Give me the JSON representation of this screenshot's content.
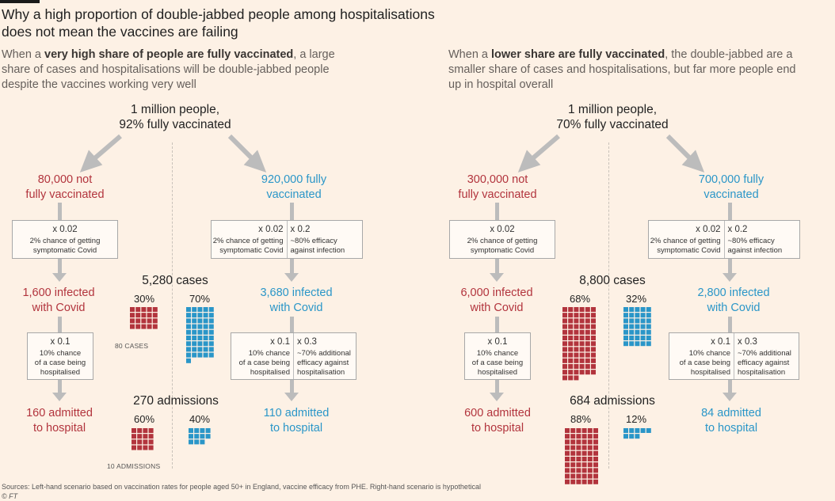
{
  "title_line1": "Why a high proportion of double-jabbed people among hospitalisations",
  "title_line2": "does not mean the vaccines are failing",
  "colors": {
    "red": "#b2343d",
    "blue": "#2a96c8",
    "arrow": "#bcbcbc",
    "background": "#fdf1e5"
  },
  "left": {
    "sub_pre": "When a ",
    "sub_bold": "very high share of people are fully vaccinated",
    "sub_post": ", a large share of cases and hospitalisations will be double-jabbed people despite the vaccines working very well",
    "pop_line1": "1 million people,",
    "pop_line2": "92% fully vaccinated",
    "unvax": {
      "group_line1": "80,000 not",
      "group_line2": "fully vaccinated",
      "box1_mult": "x 0.02",
      "box1_text1": "2% chance of getting",
      "box1_text2": "symptomatic Covid",
      "infected_line1": "1,600 infected",
      "infected_line2": "with Covid",
      "box2_mult": "x 0.1",
      "box2_text1": "10% chance",
      "box2_text2": "of a case being",
      "box2_text3": "hospitalised",
      "admitted_line1": "160 admitted",
      "admitted_line2": "to hospital"
    },
    "vax": {
      "group_line1": "920,000 fully",
      "group_line2": "vaccinated",
      "box1_mult_a": "x 0.02",
      "box1_a1": "2% chance of getting",
      "box1_a2": "symptomatic Covid",
      "box1_mult_b": "x 0.2",
      "box1_b1": "~80% efficacy",
      "box1_b2": "against infection",
      "infected_line1": "3,680 infected",
      "infected_line2": "with Covid",
      "box2_mult_a": "x 0.1",
      "box2_a1": "10% chance",
      "box2_a2": "of a case being",
      "box2_a3": "hospitalised",
      "box2_mult_b": "x 0.3",
      "box2_b1": "~70% additional",
      "box2_b2": "efficacy against",
      "box2_b3": "hospitalisation",
      "admitted_line1": "110 admitted",
      "admitted_line2": "to hospital"
    },
    "cases_label": "5,280 cases",
    "cases_unvax_pct": "30%",
    "cases_vax_pct": "70%",
    "cases_unvax_share": 30,
    "cases_vax_share": 70,
    "cases_scale_note": "80 CASES",
    "adm_label": "270 admissions",
    "adm_unvax_pct": "60%",
    "adm_vax_pct": "40%",
    "adm_unvax_share": 60,
    "adm_vax_share": 40,
    "adm_scale_note": "10 ADMISSIONS"
  },
  "right": {
    "sub_pre": "When a ",
    "sub_bold": "lower share are fully vaccinated",
    "sub_post": ", the double-jabbed are a smaller share of cases and hospitalisations, but far more people end up in hospital overall",
    "pop_line1": "1 million people,",
    "pop_line2": "70% fully vaccinated",
    "unvax": {
      "group_line1": "300,000 not",
      "group_line2": "fully vaccinated",
      "box1_mult": "x 0.02",
      "box1_text1": "2% chance of getting",
      "box1_text2": "symptomatic Covid",
      "infected_line1": "6,000 infected",
      "infected_line2": "with Covid",
      "box2_mult": "x 0.1",
      "box2_text1": "10% chance",
      "box2_text2": "of a case being",
      "box2_text3": "hospitalised",
      "admitted_line1": "600 admitted",
      "admitted_line2": "to hospital"
    },
    "vax": {
      "group_line1": "700,000 fully",
      "group_line2": "vaccinated",
      "box1_mult_a": "x 0.02",
      "box1_a1": "2% chance of getting",
      "box1_a2": "symptomatic Covid",
      "box1_mult_b": "x 0.2",
      "box1_b1": "~80% efficacy",
      "box1_b2": "against infection",
      "infected_line1": "2,800 infected",
      "infected_line2": "with Covid",
      "box2_mult_a": "x 0.1",
      "box2_a1": "10% chance",
      "box2_a2": "of a case being",
      "box2_a3": "hospitalised",
      "box2_mult_b": "x 0.3",
      "box2_b1": "~70% additional",
      "box2_b2": "efficacy against",
      "box2_b3": "hospitalisation",
      "admitted_line1": "84 admitted",
      "admitted_line2": "to hospital"
    },
    "cases_label": "8,800 cases",
    "cases_unvax_pct": "68%",
    "cases_vax_pct": "32%",
    "cases_unvax_share": 68,
    "cases_vax_share": 32,
    "adm_label": "684 admissions",
    "adm_unvax_pct": "88%",
    "adm_vax_pct": "12%",
    "adm_unvax_share": 88,
    "adm_vax_share": 12
  },
  "sources": "Sources: Left-hand scenario based on vaccination rates for people aged 50+ in England, vaccine efficacy from PHE. Right-hand scenario is hypothetical",
  "credit": "© FT"
}
